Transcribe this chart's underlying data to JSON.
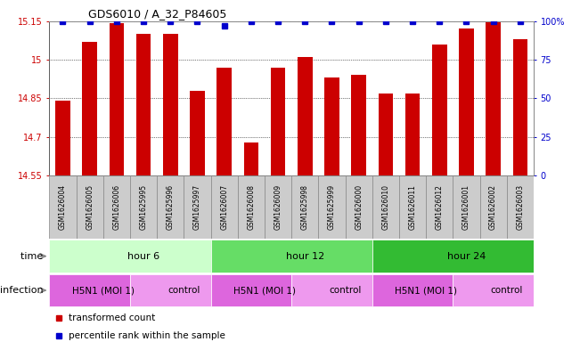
{
  "title": "GDS6010 / A_32_P84605",
  "samples": [
    "GSM1626004",
    "GSM1626005",
    "GSM1626006",
    "GSM1625995",
    "GSM1625996",
    "GSM1625997",
    "GSM1626007",
    "GSM1626008",
    "GSM1626009",
    "GSM1625998",
    "GSM1625999",
    "GSM1626000",
    "GSM1626010",
    "GSM1626011",
    "GSM1626012",
    "GSM1626001",
    "GSM1626002",
    "GSM1626003"
  ],
  "bar_values": [
    14.84,
    15.07,
    15.14,
    15.1,
    15.1,
    14.88,
    14.97,
    14.68,
    14.97,
    15.01,
    14.93,
    14.94,
    14.87,
    14.87,
    15.06,
    15.12,
    15.15,
    15.08
  ],
  "percentile_values": [
    100,
    100,
    100,
    100,
    100,
    100,
    97,
    100,
    100,
    100,
    100,
    100,
    100,
    100,
    100,
    100,
    100,
    100
  ],
  "ylim_left": [
    14.55,
    15.15
  ],
  "ylim_right": [
    0,
    100
  ],
  "yticks_left": [
    14.55,
    14.7,
    14.85,
    15.0,
    15.15
  ],
  "yticks_right": [
    0,
    25,
    50,
    75,
    100
  ],
  "bar_color": "#cc0000",
  "percentile_color": "#0000cc",
  "time_groups": [
    {
      "label": "hour 6",
      "start": 0,
      "end": 6,
      "color": "#ccffcc"
    },
    {
      "label": "hour 12",
      "start": 6,
      "end": 12,
      "color": "#66dd66"
    },
    {
      "label": "hour 24",
      "start": 12,
      "end": 18,
      "color": "#33bb33"
    }
  ],
  "infection_groups": [
    {
      "label": "H5N1 (MOI 1)",
      "start": 0,
      "end": 3,
      "color": "#dd66dd"
    },
    {
      "label": "control",
      "start": 3,
      "end": 6,
      "color": "#ee99ee"
    },
    {
      "label": "H5N1 (MOI 1)",
      "start": 6,
      "end": 9,
      "color": "#dd66dd"
    },
    {
      "label": "control",
      "start": 9,
      "end": 12,
      "color": "#ee99ee"
    },
    {
      "label": "H5N1 (MOI 1)",
      "start": 12,
      "end": 15,
      "color": "#dd66dd"
    },
    {
      "label": "control",
      "start": 15,
      "end": 18,
      "color": "#ee99ee"
    }
  ],
  "legend_items": [
    {
      "label": "transformed count",
      "color": "#cc0000"
    },
    {
      "label": "percentile rank within the sample",
      "color": "#0000cc"
    }
  ],
  "time_label": "time",
  "infection_label": "infection",
  "ylabel_color_left": "#cc0000",
  "ylabel_color_right": "#0000cc",
  "sample_box_color": "#cccccc",
  "sample_box_edge": "#888888"
}
